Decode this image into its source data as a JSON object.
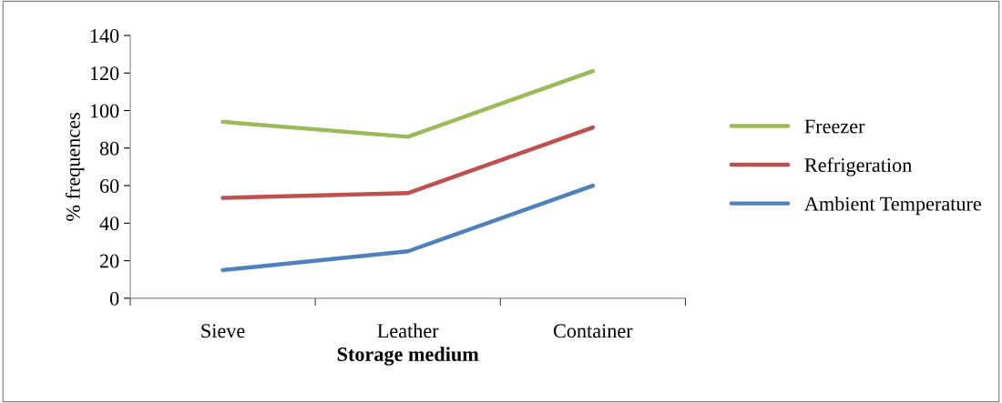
{
  "chart_data": {
    "type": "line",
    "xlabel": "Storage medium",
    "ylabel": "% frequences",
    "categories": [
      "Sieve",
      "Leather",
      "Container"
    ],
    "series": [
      {
        "name": "Freezer",
        "color": "#9bbb59",
        "values": [
          94,
          86,
          121
        ]
      },
      {
        "name": "Refrigeration",
        "color": "#c0504d",
        "values": [
          53.5,
          56,
          91
        ]
      },
      {
        "name": "Ambient Temperature",
        "color": "#4f81bd",
        "values": [
          15,
          25,
          60
        ]
      }
    ],
    "ylim": [
      0,
      140
    ],
    "yticks": [
      0,
      20,
      40,
      60,
      80,
      100,
      120,
      140
    ],
    "grid": false,
    "legend": "right",
    "marker": "none",
    "line_style": "solid"
  }
}
